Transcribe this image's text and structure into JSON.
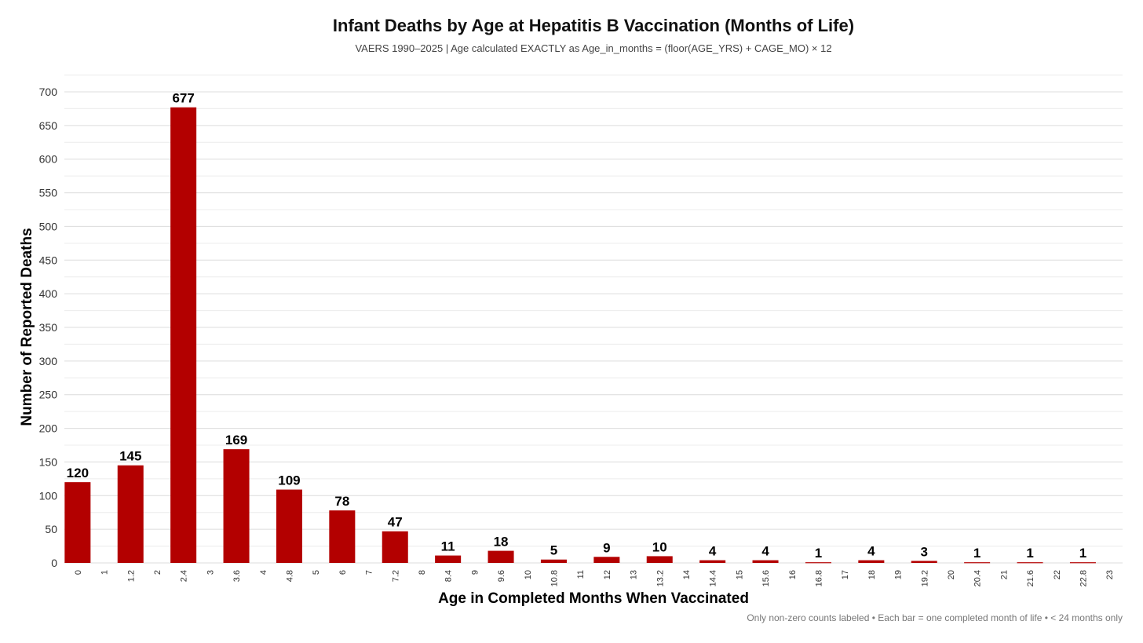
{
  "chart_data": {
    "type": "bar",
    "title": "Infant Deaths by Age at Hepatitis B Vaccination (Months of Life)",
    "subtitle": "VAERS 1990–2025 | Age calculated EXACTLY as Age_in_months = (floor(AGE_YRS) + CAGE_MO) × 12",
    "caption": "Only non-zero counts labeled • Each bar = one completed month of life • < 24 months only",
    "xlabel": "Age in Completed Months When Vaccinated",
    "ylabel": "Number of Reported Deaths",
    "ylim": [
      0,
      700
    ],
    "yticks": [
      "0",
      "50",
      "100",
      "150",
      "200",
      "250",
      "300",
      "350",
      "400",
      "450",
      "500",
      "550",
      "600",
      "650",
      "700"
    ],
    "grid": true,
    "bar_color": "#b30000",
    "categories": [
      "0",
      "1",
      "1.2",
      "2",
      "2.4",
      "3",
      "3.6",
      "4",
      "4.8",
      "5",
      "6",
      "7",
      "7.2",
      "8",
      "8.4",
      "9",
      "9.6",
      "10",
      "10.8",
      "11",
      "12",
      "13",
      "13.2",
      "14",
      "14.4",
      "15",
      "15.6",
      "16",
      "16.8",
      "17",
      "18",
      "19",
      "19.2",
      "20",
      "20.4",
      "21",
      "21.6",
      "22",
      "22.8",
      "23"
    ],
    "values": [
      120,
      0,
      145,
      0,
      677,
      0,
      169,
      0,
      109,
      0,
      78,
      0,
      47,
      0,
      11,
      0,
      18,
      0,
      5,
      0,
      9,
      0,
      10,
      0,
      4,
      0,
      4,
      0,
      1,
      0,
      4,
      0,
      3,
      0,
      1,
      0,
      1,
      0,
      1,
      0
    ],
    "labels": [
      "120",
      "",
      "145",
      "",
      "677",
      "",
      "169",
      "",
      "109",
      "",
      "78",
      "",
      "47",
      "",
      "11",
      "",
      "18",
      "",
      "5",
      "",
      "9",
      "",
      "10",
      "",
      "4",
      "",
      "4",
      "",
      "1",
      "",
      "4",
      "",
      "3",
      "",
      "1",
      "",
      "1",
      "",
      "1",
      ""
    ]
  }
}
